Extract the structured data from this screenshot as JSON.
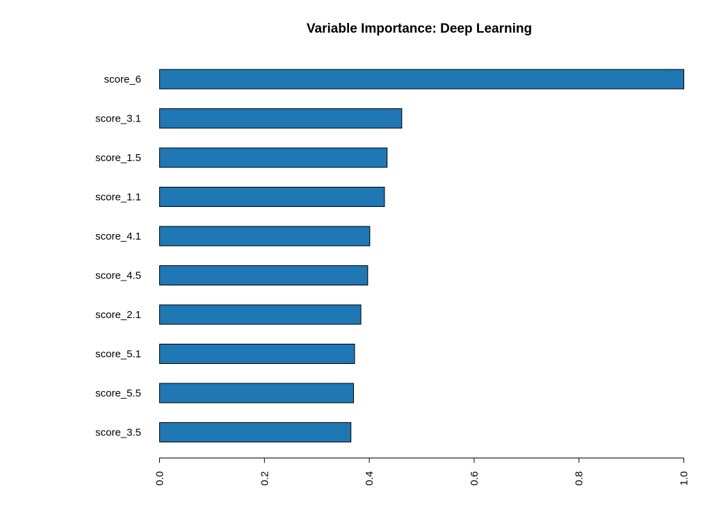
{
  "chart_data": {
    "type": "bar",
    "orientation": "horizontal",
    "title": "Variable Importance: Deep Learning",
    "xlabel": "",
    "ylabel": "",
    "categories": [
      "score_6",
      "score_3.1",
      "score_1.5",
      "score_1.1",
      "score_4.1",
      "score_4.5",
      "score_2.1",
      "score_5.1",
      "score_5.5",
      "score_3.5"
    ],
    "values": [
      1.0,
      0.462,
      0.434,
      0.429,
      0.401,
      0.397,
      0.384,
      0.372,
      0.37,
      0.365
    ],
    "xlim": [
      0,
      1
    ],
    "xticks": [
      0,
      0.2,
      0.4,
      0.6,
      0.8,
      1.0
    ],
    "xtick_labels": [
      "0.0",
      "0.2",
      "0.4",
      "0.6",
      "0.8",
      "1.0"
    ],
    "tick_label_orientation": "vertical",
    "grid": false,
    "legend": "none",
    "bar_color": "#1f77b4",
    "bar_edge_color": "#000000"
  }
}
